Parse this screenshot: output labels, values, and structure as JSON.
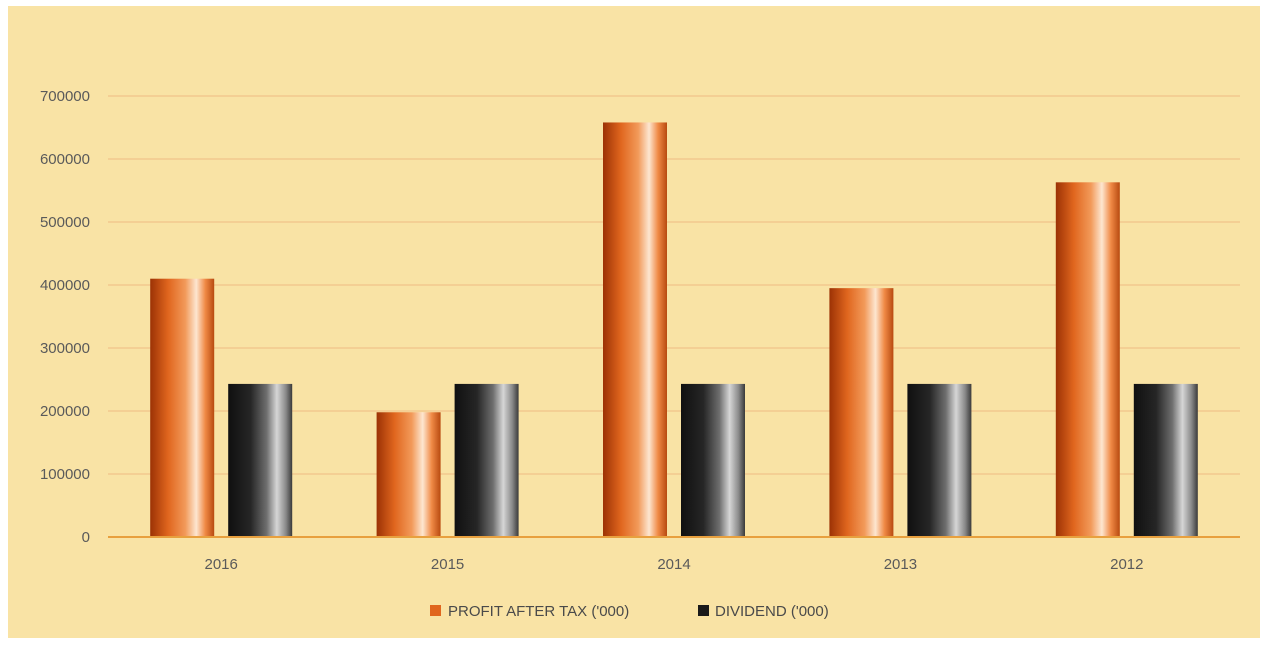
{
  "chart_data": {
    "type": "bar",
    "categories": [
      "2016",
      "2015",
      "2014",
      "2013",
      "2012"
    ],
    "series": [
      {
        "name": "PROFIT AFTER TAX ('000)",
        "values": [
          410000,
          198000,
          658000,
          395000,
          563000
        ],
        "color": "#e0661e"
      },
      {
        "name": "DIVIDEND ('000)",
        "values": [
          243000,
          243000,
          243000,
          243000,
          243000
        ],
        "color": "#1a1a1a"
      }
    ],
    "yticks": [
      "0",
      "100000",
      "200000",
      "300000",
      "400000",
      "500000",
      "600000",
      "700000"
    ],
    "ylim": [
      0,
      700000
    ],
    "grid": true,
    "legend_position": "bottom",
    "background_color": "#f9e3a5",
    "gridline_color": "#f1c38b",
    "axis_color": "#e8a03e"
  }
}
